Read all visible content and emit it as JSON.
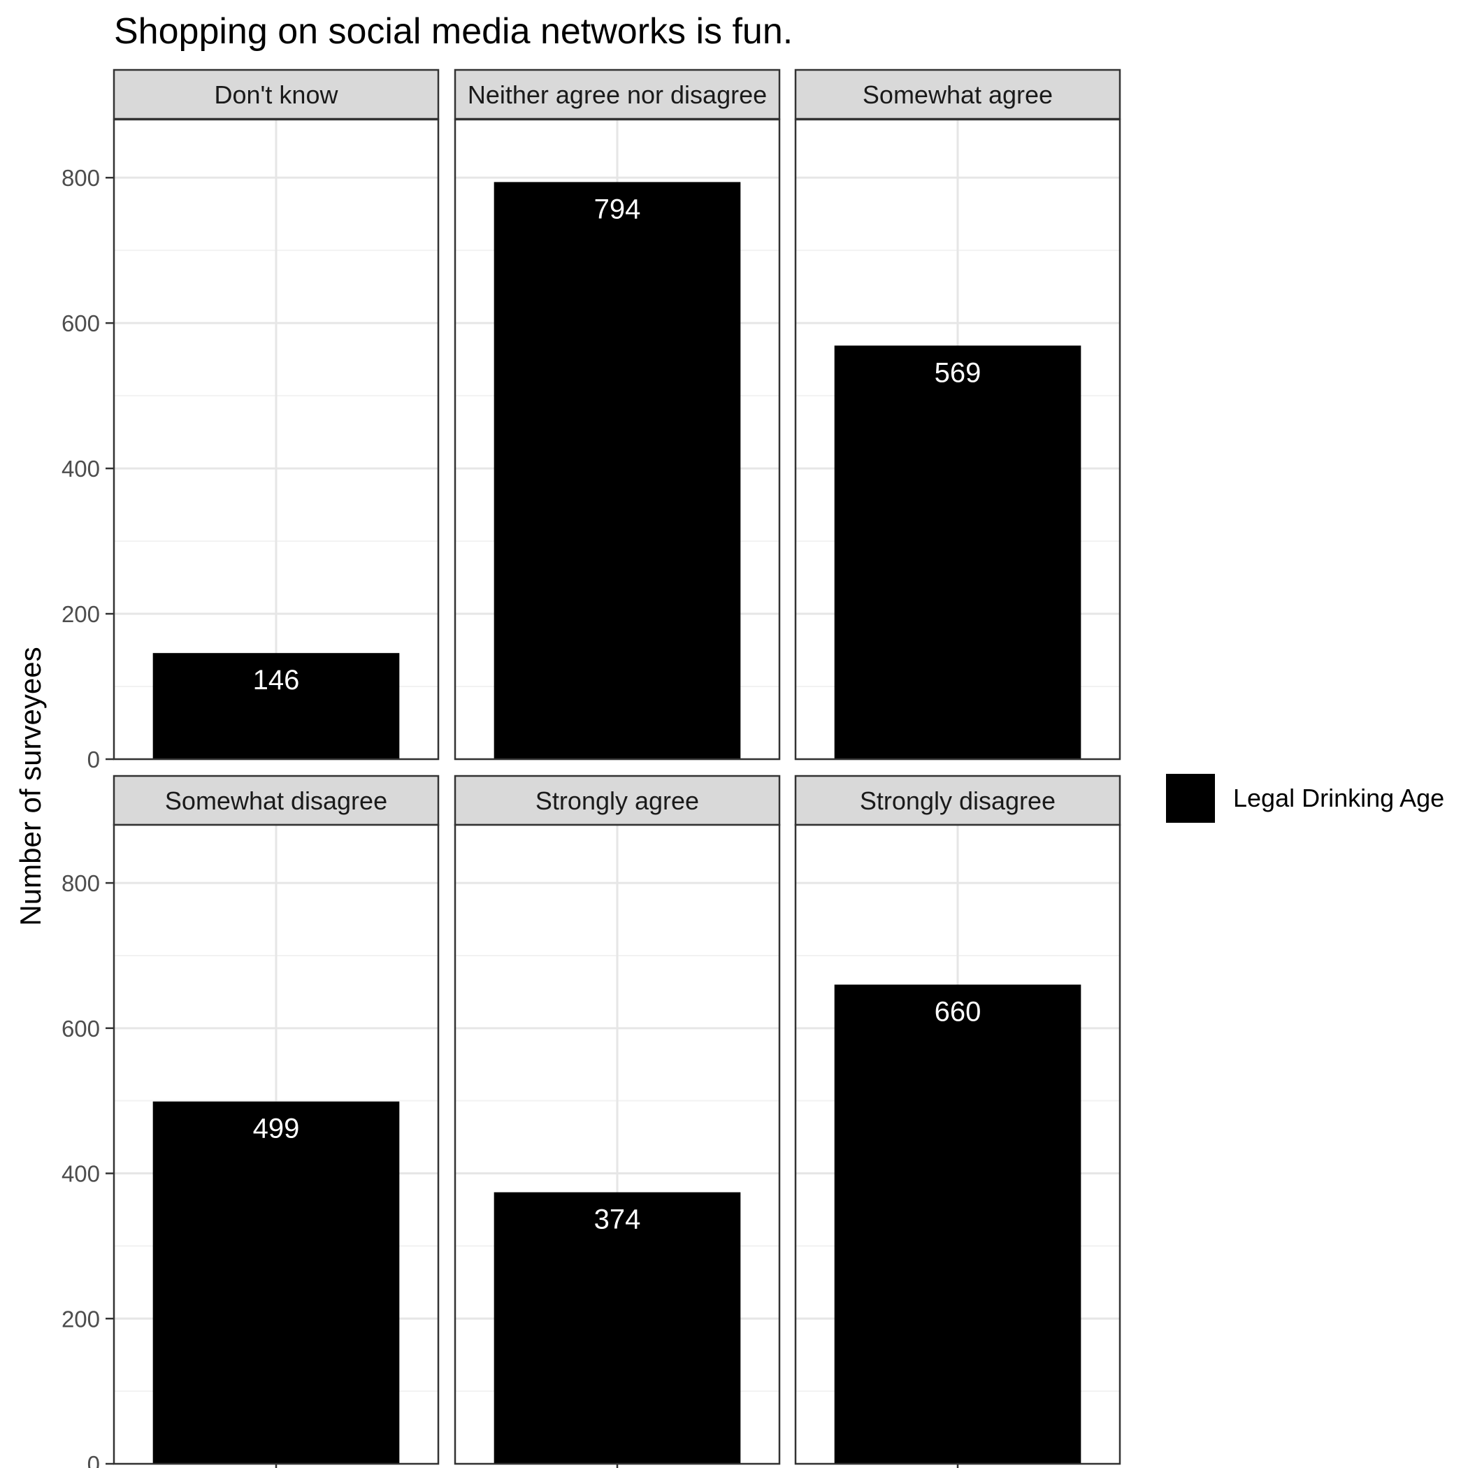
{
  "chart_data": {
    "type": "bar",
    "title": "Shopping on social media networks is fun.",
    "xlabel": "",
    "ylabel": "Number of surveyees",
    "ylim": [
      0,
      880
    ],
    "yticks": [
      0,
      200,
      400,
      600,
      800
    ],
    "grid": true,
    "facets": [
      {
        "label": "Don't know",
        "value": 146
      },
      {
        "label": "Neither agree nor disagree",
        "value": 794
      },
      {
        "label": "Somewhat agree",
        "value": 569
      },
      {
        "label": "Somewhat disagree",
        "value": 499
      },
      {
        "label": "Strongly agree",
        "value": 374
      },
      {
        "label": "Strongly disagree",
        "value": 660
      }
    ],
    "series": [
      {
        "name": "Legal Drinking Age",
        "color": "#000000"
      }
    ],
    "legend_position": "right"
  }
}
